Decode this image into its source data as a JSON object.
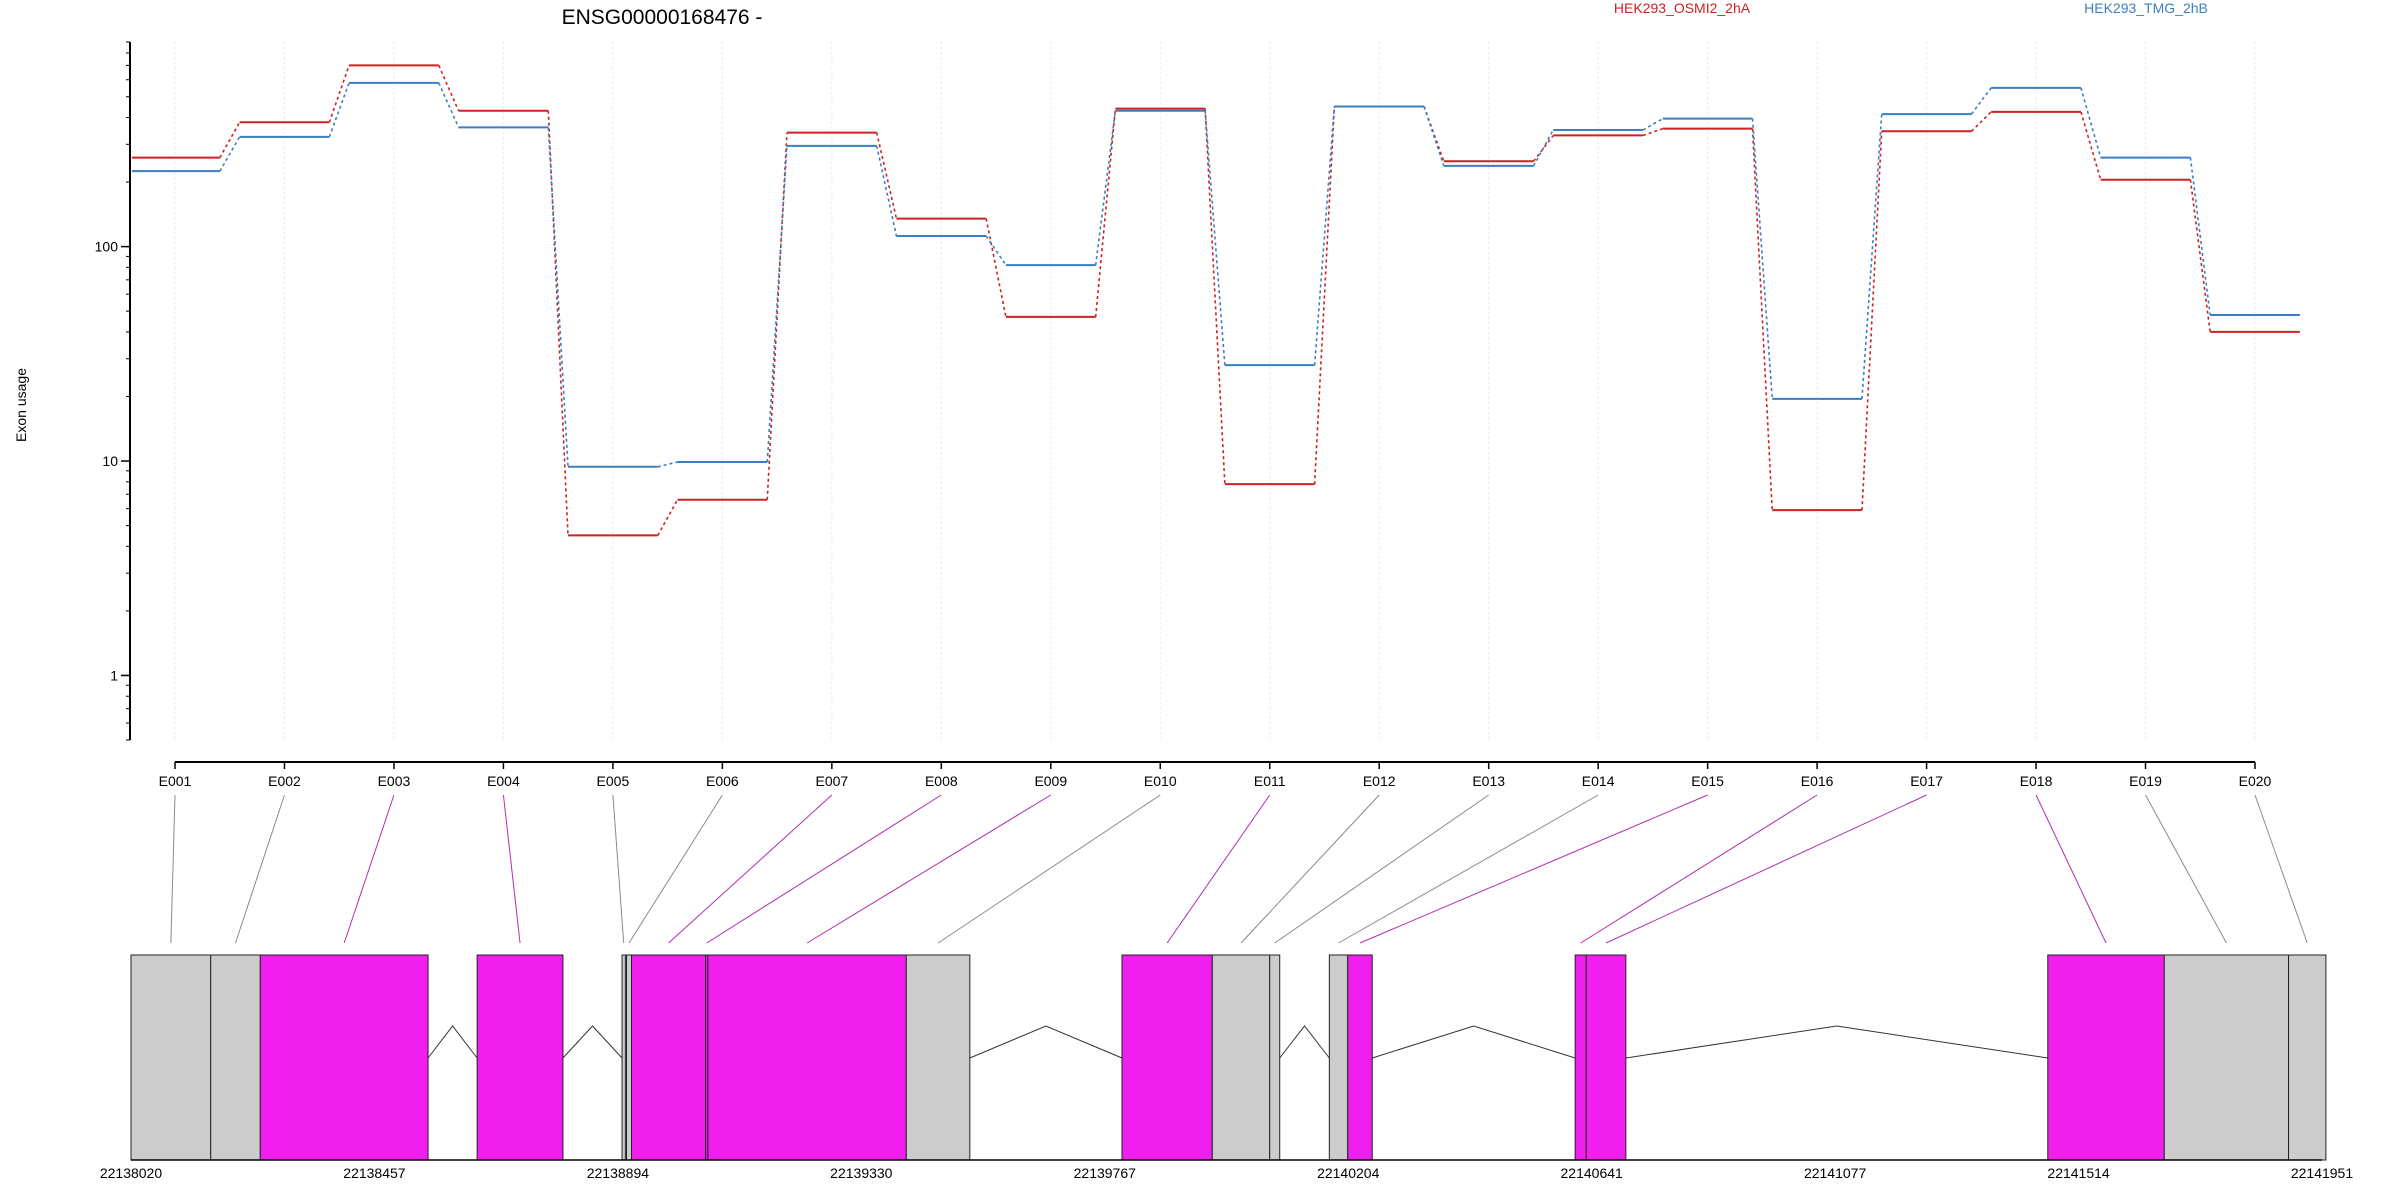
{
  "title": "ENSG00000168476 -",
  "chart_data": {
    "type": "line",
    "title": "ENSG00000168476 -",
    "ylabel": "Exon usage",
    "y_scale": "log",
    "ylim": [
      0.5,
      900
    ],
    "y_ticks": [
      1,
      10,
      100
    ],
    "y_tick_labels": [
      "1",
      "10",
      "100"
    ],
    "grid": "vertical",
    "categories": [
      "E001",
      "E002",
      "E003",
      "E004",
      "E005",
      "E006",
      "E007",
      "E008",
      "E009",
      "E010",
      "E011",
      "E012",
      "E013",
      "E014",
      "E015",
      "E016",
      "E017",
      "E018",
      "E019",
      "E020"
    ],
    "series": [
      {
        "name": "HEK293_OSMI2_2hA",
        "color": "#cc2222",
        "values": [
          260,
          380,
          700,
          430,
          4.5,
          6.6,
          340,
          135,
          47,
          440,
          7.8,
          450,
          250,
          330,
          355,
          5.9,
          345,
          425,
          205,
          40
        ]
      },
      {
        "name": "HEK293_TMG_2hB",
        "color": "#3a7fc1",
        "values": [
          225,
          325,
          580,
          360,
          9.4,
          9.9,
          295,
          112,
          82,
          430,
          28,
          450,
          238,
          350,
          395,
          19.5,
          415,
          550,
          260,
          48
        ]
      }
    ],
    "gene_model": {
      "coordinate_ticks": [
        "22138020",
        "22138457",
        "22138894",
        "22139330",
        "22139767",
        "22140204",
        "22140641",
        "22141077",
        "22141514",
        "22141951"
      ],
      "coord_range": [
        22138020,
        22141951
      ],
      "exon_fill_colors": {
        "highlight": "#f01fed",
        "plain": "#cccccc"
      },
      "exons": [
        {
          "id": "E001",
          "start": 22138020,
          "end": 22138163,
          "highlight": false
        },
        {
          "id": "E002",
          "start": 22138163,
          "end": 22138252,
          "highlight": false
        },
        {
          "id": "E003",
          "start": 22138252,
          "end": 22138553,
          "highlight": true
        },
        {
          "id": "E004",
          "start": 22138641,
          "end": 22138795,
          "highlight": true
        },
        {
          "id": "E005",
          "start": 22138901,
          "end": 22138907,
          "highlight": false
        },
        {
          "id": "E006",
          "start": 22138909,
          "end": 22138918,
          "highlight": false
        },
        {
          "id": "E007",
          "start": 22138918,
          "end": 22139051,
          "highlight": true
        },
        {
          "id": "E008",
          "start": 22139051,
          "end": 22139055,
          "highlight": true
        },
        {
          "id": "E009",
          "start": 22139055,
          "end": 22139411,
          "highlight": true
        },
        {
          "id": "E010",
          "start": 22139411,
          "end": 22139525,
          "highlight": false
        },
        {
          "id": "E011",
          "start": 22139798,
          "end": 22139960,
          "highlight": true
        },
        {
          "id": "E012",
          "start": 22139960,
          "end": 22140063,
          "highlight": false
        },
        {
          "id": "E013",
          "start": 22140063,
          "end": 22140081,
          "highlight": false
        },
        {
          "id": "E014",
          "start": 22140170,
          "end": 22140203,
          "highlight": false
        },
        {
          "id": "E015",
          "start": 22140203,
          "end": 22140247,
          "highlight": true
        },
        {
          "id": "E016",
          "start": 22140611,
          "end": 22140631,
          "highlight": true
        },
        {
          "id": "E017",
          "start": 22140631,
          "end": 22140702,
          "highlight": true
        },
        {
          "id": "E018",
          "start": 22141459,
          "end": 22141668,
          "highlight": true
        },
        {
          "id": "E019",
          "start": 22141668,
          "end": 22141891,
          "highlight": false
        },
        {
          "id": "E020",
          "start": 22141891,
          "end": 22141958,
          "highlight": false
        }
      ],
      "introns": [
        [
          22138553,
          22138641
        ],
        [
          22138795,
          22138901
        ],
        [
          22139525,
          22139798
        ],
        [
          22140081,
          22140170
        ],
        [
          22140247,
          22140611
        ],
        [
          22140702,
          22141459
        ]
      ]
    }
  }
}
